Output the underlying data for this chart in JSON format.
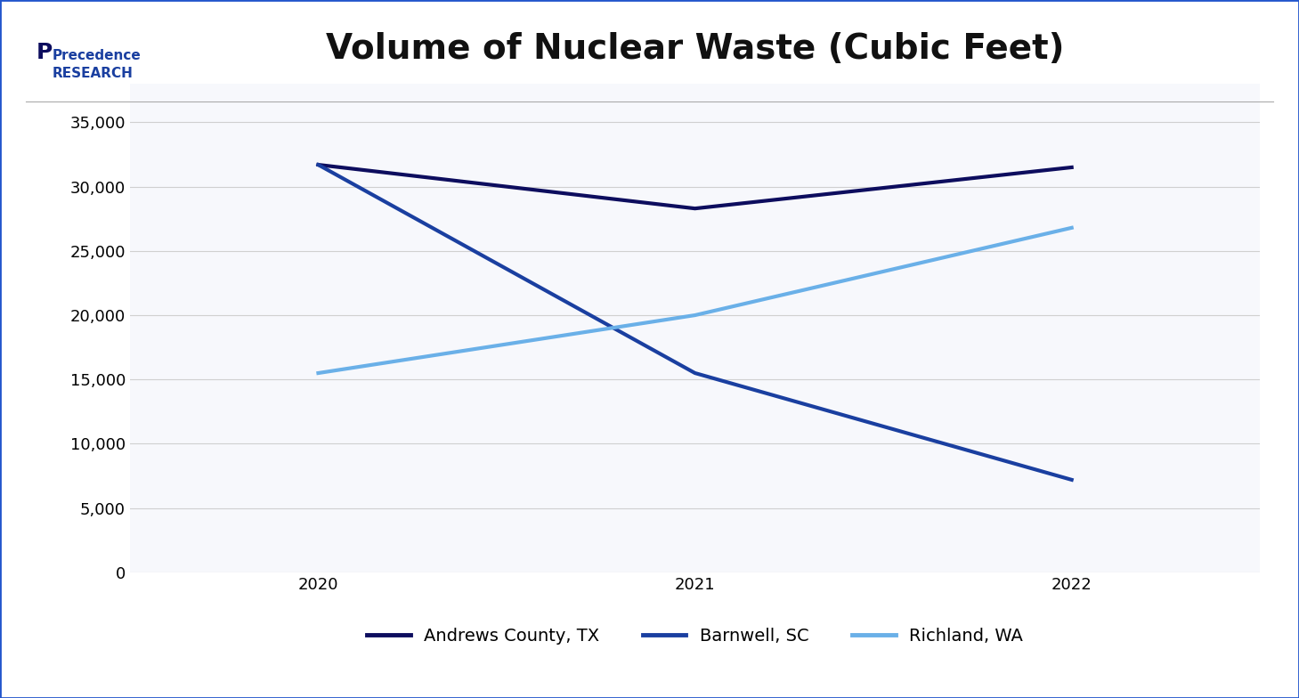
{
  "title": "Volume of Nuclear Waste (Cubic Feet)",
  "years": [
    2020,
    2021,
    2022
  ],
  "series": [
    {
      "name": "Andrews County, TX",
      "values": [
        31700,
        28300,
        31500
      ],
      "color": "#0d0d5e",
      "linewidth": 3.0
    },
    {
      "name": "Barnwell, SC",
      "values": [
        31700,
        15500,
        7200
      ],
      "color": "#1a3fa0",
      "linewidth": 3.0
    },
    {
      "name": "Richland, WA",
      "values": [
        15500,
        20000,
        26800
      ],
      "color": "#6ab0e8",
      "linewidth": 3.0
    }
  ],
  "ylim": [
    0,
    38000
  ],
  "yticks": [
    0,
    5000,
    10000,
    15000,
    20000,
    25000,
    30000,
    35000
  ],
  "background_color": "#ffffff",
  "plot_area_color": "#f7f8fc",
  "grid_color": "#d0d0d0",
  "title_fontsize": 28,
  "tick_fontsize": 13,
  "legend_fontsize": 14,
  "outer_border_color": "#2255cc"
}
